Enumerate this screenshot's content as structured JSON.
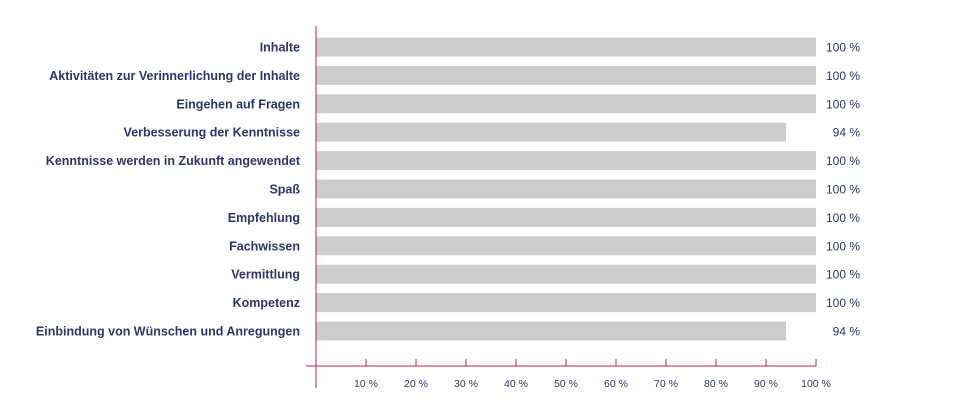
{
  "chart_data": {
    "type": "bar",
    "orientation": "horizontal",
    "categories": [
      "Inhalte",
      "Aktivitäten zur Verinnerlichung der Inhalte",
      "Eingehen auf Fragen",
      "Verbesserung der Kenntnisse",
      "Kenntnisse werden in Zukunft angewendet",
      "Spaß",
      "Empfehlung",
      "Fachwissen",
      "Vermittlung",
      "Kompetenz",
      "Einbindung von Wünschen und Anregungen"
    ],
    "values": [
      100,
      100,
      100,
      94,
      100,
      100,
      100,
      100,
      100,
      100,
      94
    ],
    "value_labels": [
      "100 %",
      "100 %",
      "100 %",
      "94 %",
      "100 %",
      "100 %",
      "100 %",
      "100 %",
      "100 %",
      "100 %",
      "94 %"
    ],
    "xlim": [
      0,
      100
    ],
    "xticks": [
      10,
      20,
      30,
      40,
      50,
      60,
      70,
      80,
      90,
      100
    ],
    "xtick_labels": [
      "10 %",
      "20 %",
      "30 %",
      "40 %",
      "50 %",
      "60 %",
      "70 %",
      "80 %",
      "90 %",
      "100 %"
    ],
    "title": "",
    "xlabel": "",
    "ylabel": "",
    "grid": false,
    "legend": "none",
    "colors": {
      "bar": "#cdcdcf",
      "axis": "#a8275a",
      "label": "#2f3566",
      "value_label": "#2f3566"
    }
  }
}
